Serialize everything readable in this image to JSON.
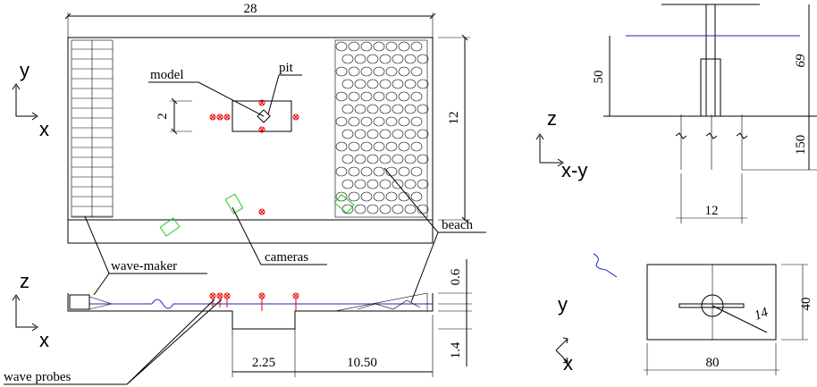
{
  "plan_view": {
    "dimensions": {
      "length": "28",
      "width": "12",
      "model_offset": "2"
    },
    "labels": {
      "model": "model",
      "pit": "pit",
      "beach": "beach",
      "cameras": "cameras"
    },
    "axes": {
      "vertical": "y",
      "horizontal": "x"
    }
  },
  "side_view": {
    "labels": {
      "wave_maker": "wave-maker",
      "wave_probes": "wave probes"
    },
    "dimensions": {
      "water_depth": "0.6",
      "pit_depth": "1.4",
      "pit_length": "2.25",
      "beach_distance": "10.50"
    },
    "axes": {
      "vertical": "z",
      "horizontal": "x"
    }
  },
  "pile_detail": {
    "dimensions": {
      "submerged": "50",
      "total": "69",
      "embedded": "150",
      "spacing": "12"
    },
    "axes": {
      "vertical": "z",
      "horizontal": "x-y"
    }
  },
  "plate_detail": {
    "dimensions": {
      "width": "40",
      "radius": "14",
      "length": "80"
    },
    "axes": {
      "vertical": "y",
      "horizontal": "x"
    }
  }
}
